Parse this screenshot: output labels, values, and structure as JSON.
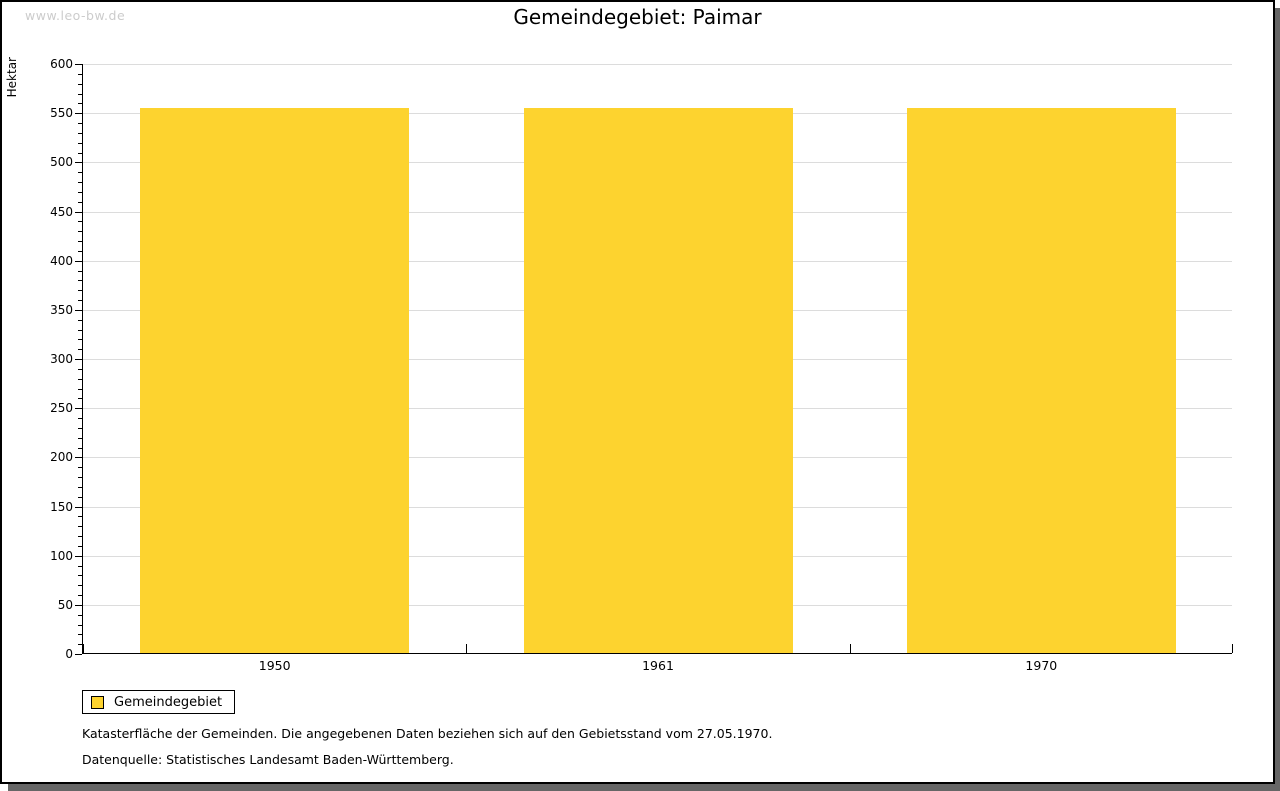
{
  "watermark": "www.leo-bw.de",
  "legend": {
    "items": [
      {
        "label": "Gemeindegebiet",
        "color": "#FDD32F"
      }
    ]
  },
  "footnotes": [
    "Katasterfläche der Gemeinden. Die angegebenen Daten beziehen sich auf den Gebietsstand vom 27.05.1970.",
    "Datenquelle: Statistisches Landesamt Baden-Württemberg."
  ],
  "chart_data": {
    "type": "bar",
    "title": "Gemeindegebiet: Paimar",
    "categories": [
      "1950",
      "1961",
      "1970"
    ],
    "series": [
      {
        "name": "Gemeindegebiet",
        "values": [
          554,
          554,
          554
        ]
      }
    ],
    "xlabel": "",
    "ylabel": "Hektar",
    "ylim": [
      0,
      600
    ],
    "y_major_step": 50,
    "y_minor_step": 10,
    "grid": "horizontal-major-only",
    "legend_position": "bottom-left",
    "bar_color": "#FDD32F",
    "gridline_color": "#dcdcdc",
    "axis_color": "#000000"
  },
  "colors": {
    "bar": "#FDD32F",
    "gridline": "#dcdcdc",
    "watermark": "#cccccc",
    "window_shadow": "#666666",
    "background": "#ffffff"
  }
}
